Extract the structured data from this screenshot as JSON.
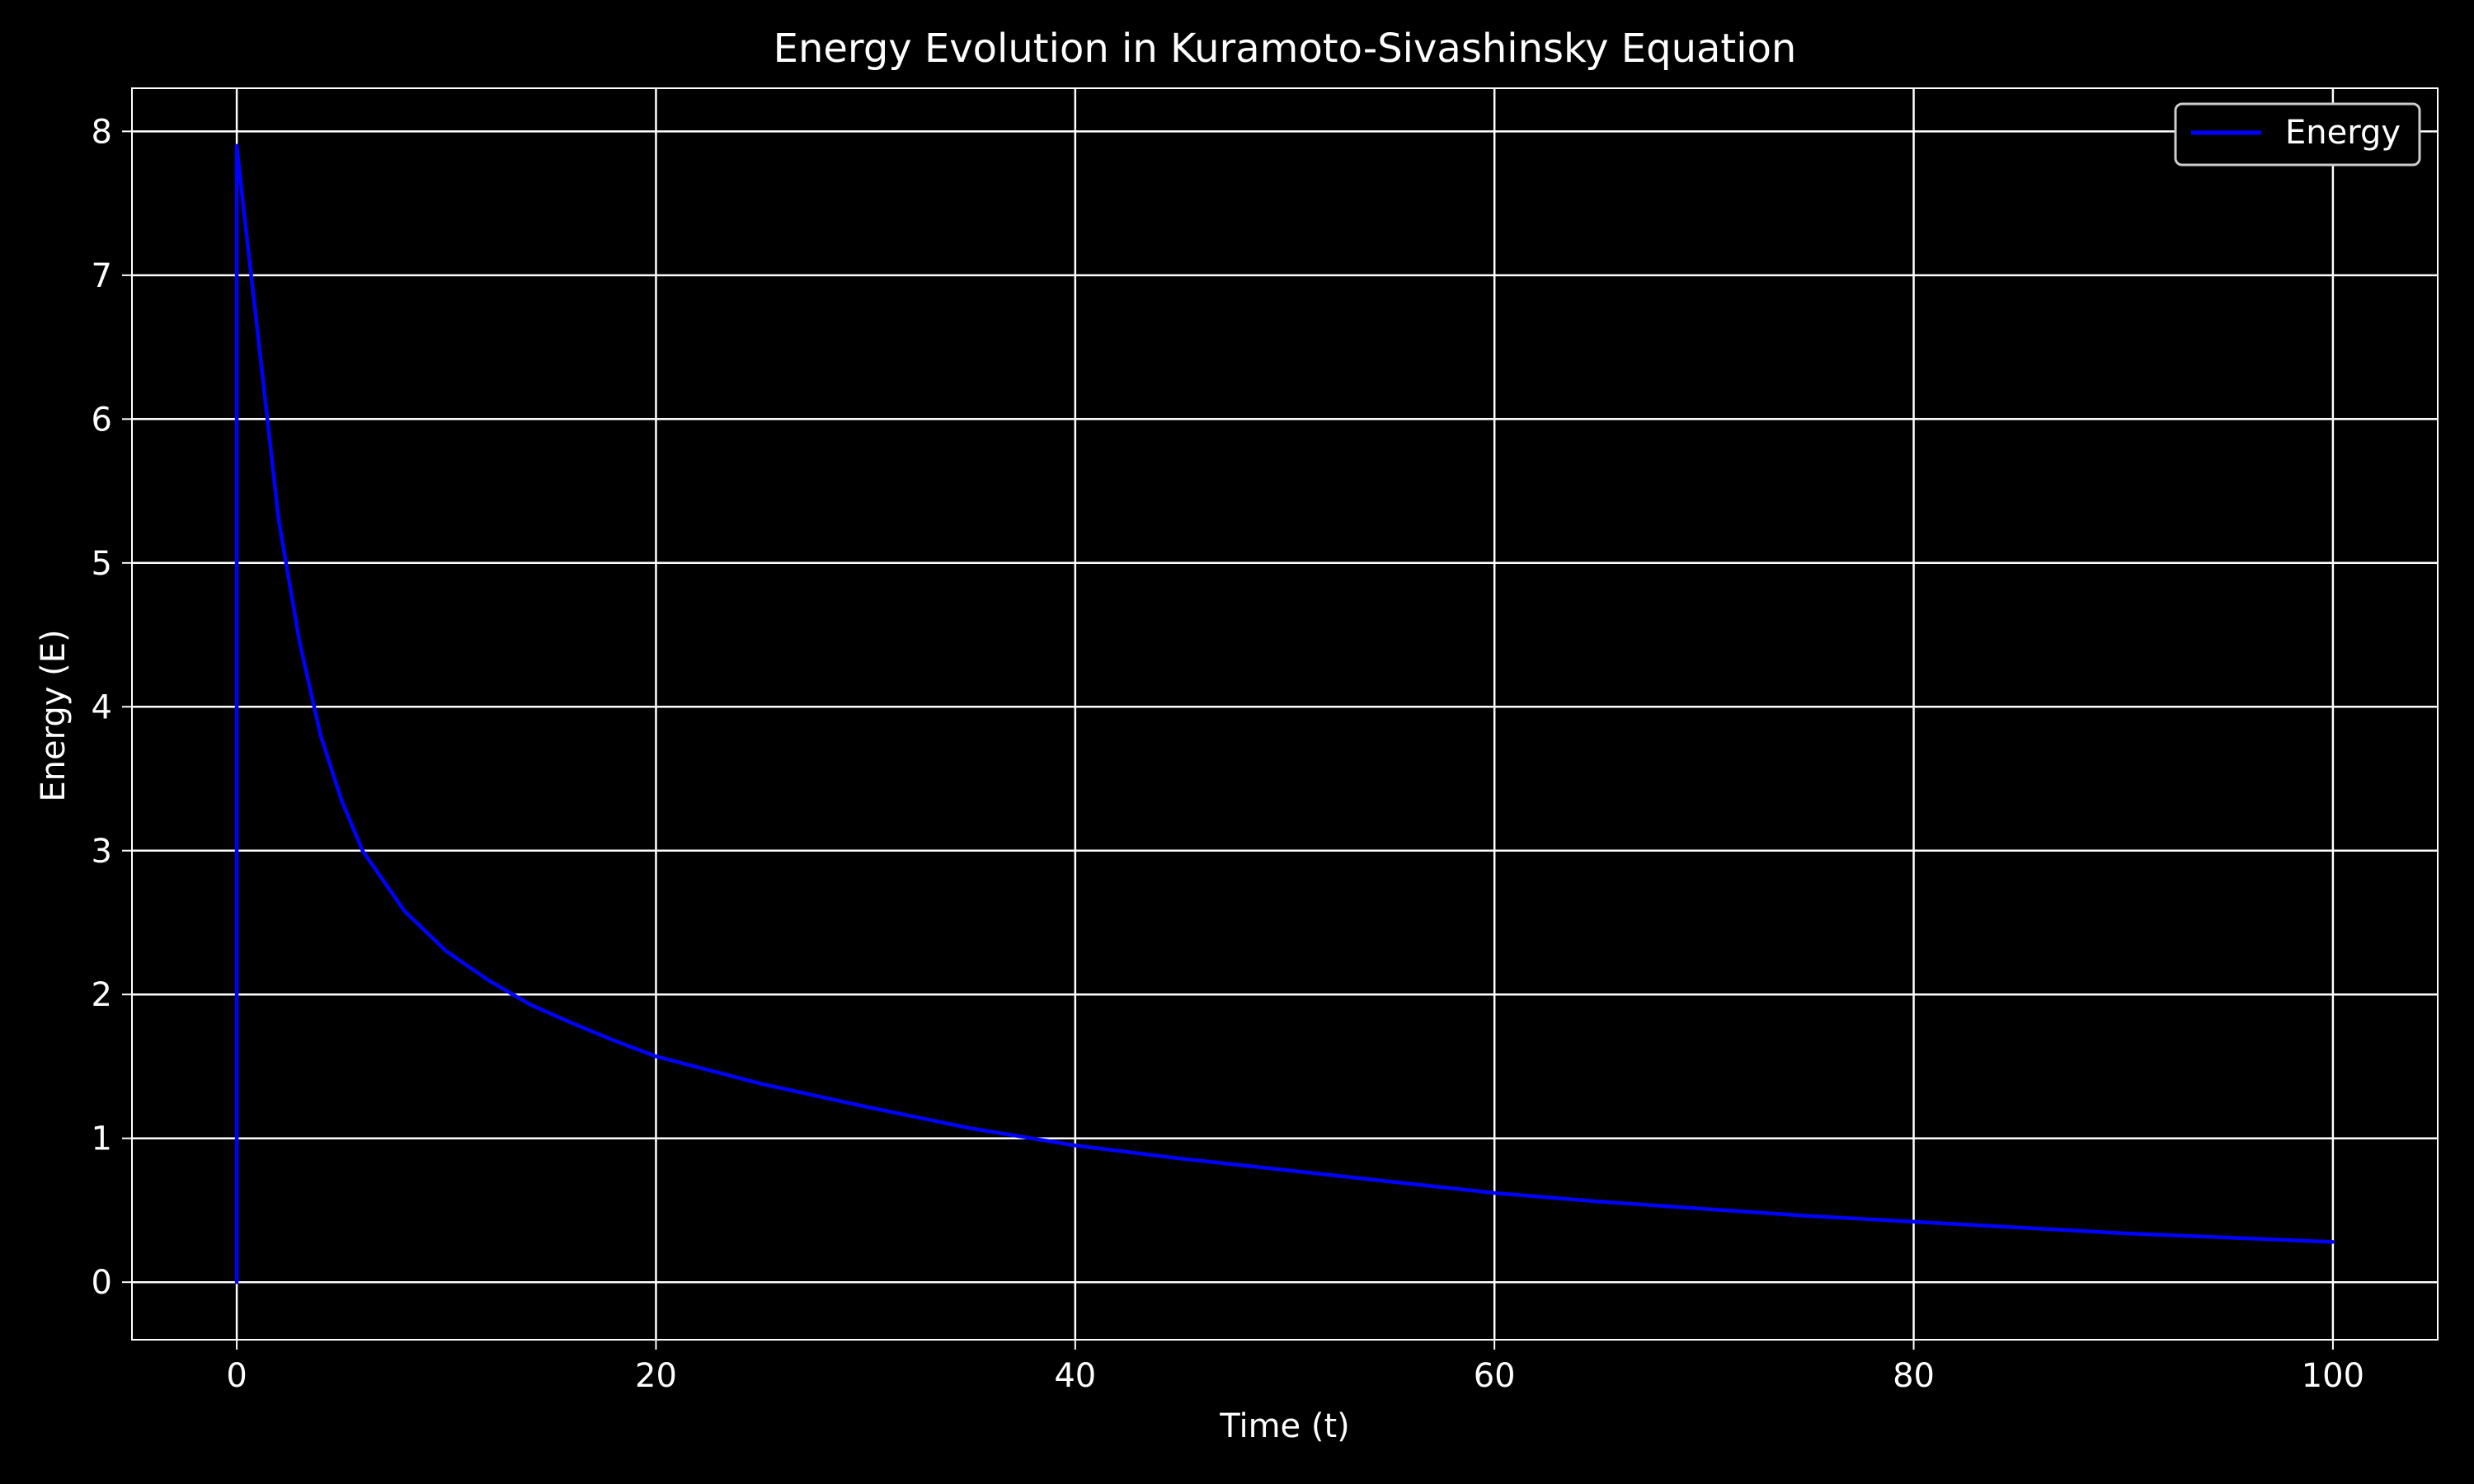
{
  "chart_data": {
    "type": "line",
    "title": "Energy Evolution in Kuramoto-Sivashinsky Equation",
    "xlabel": "Time (t)",
    "ylabel": "Energy (E)",
    "xlim": [
      -5,
      105
    ],
    "ylim": [
      -0.4,
      8.3
    ],
    "xticks": [
      0,
      20,
      40,
      60,
      80,
      100
    ],
    "yticks": [
      0,
      1,
      2,
      3,
      4,
      5,
      6,
      7,
      8
    ],
    "grid": true,
    "legend": {
      "position": "top-right"
    },
    "colors": {
      "background": "#000000",
      "axes": "#ffffff",
      "grid": "#ffffff",
      "text": "#ffffff",
      "line": "#0000ff"
    },
    "series": [
      {
        "name": "Energy",
        "color": "#0000ff",
        "x": [
          0,
          0,
          0.3,
          1,
          2,
          3,
          4,
          5,
          6,
          8,
          10,
          12,
          14,
          16,
          18,
          20,
          25,
          30,
          35,
          40,
          45,
          50,
          55,
          60,
          65,
          70,
          75,
          80,
          85,
          90,
          95,
          100
        ],
        "y": [
          0,
          7.9,
          7.5,
          6.6,
          5.3,
          4.45,
          3.8,
          3.35,
          3.0,
          2.58,
          2.3,
          2.1,
          1.93,
          1.8,
          1.68,
          1.57,
          1.38,
          1.22,
          1.07,
          0.95,
          0.86,
          0.78,
          0.7,
          0.62,
          0.56,
          0.51,
          0.46,
          0.42,
          0.38,
          0.34,
          0.31,
          0.28
        ]
      }
    ]
  }
}
